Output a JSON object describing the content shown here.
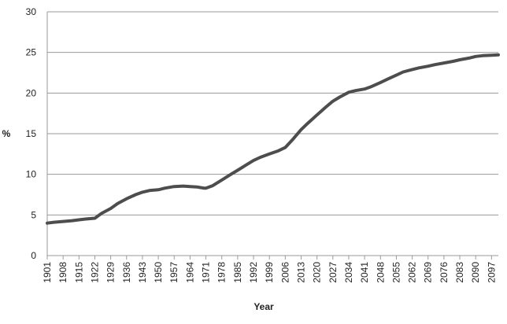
{
  "chart_data": {
    "type": "line",
    "xlabel": "Year",
    "ylabel": "%",
    "ylim": [
      0,
      30
    ],
    "yticks": [
      "0",
      "5",
      "10",
      "15",
      "20",
      "25",
      "30"
    ],
    "xlim": [
      1901,
      2100
    ],
    "xticks": [
      "1901",
      "1908",
      "1915",
      "1922",
      "1929",
      "1936",
      "1943",
      "1950",
      "1957",
      "1964",
      "1971",
      "1978",
      "1985",
      "1992",
      "1999",
      "2006",
      "2013",
      "2020",
      "2027",
      "2034",
      "2041",
      "2048",
      "2055",
      "2062",
      "2069",
      "2076",
      "2083",
      "2090",
      "2097"
    ],
    "grid": "horizontal",
    "legend": "none",
    "line_color": "#4d4d4d",
    "series": [
      {
        "x": [
          1901,
          1904,
          1908,
          1912,
          1915,
          1918,
          1922,
          1925,
          1929,
          1932,
          1936,
          1940,
          1943,
          1946,
          1950,
          1953,
          1957,
          1961,
          1964,
          1967,
          1970,
          1971,
          1974,
          1978,
          1982,
          1985,
          1989,
          1992,
          1995,
          1999,
          2003,
          2006,
          2009,
          2013,
          2016,
          2020,
          2024,
          2027,
          2030,
          2034,
          2037,
          2041,
          2044,
          2048,
          2051,
          2055,
          2058,
          2062,
          2065,
          2069,
          2072,
          2076,
          2080,
          2083,
          2087,
          2090,
          2093,
          2097,
          2100
        ],
        "y": [
          4.0,
          4.1,
          4.2,
          4.3,
          4.4,
          4.5,
          4.6,
          5.2,
          5.8,
          6.4,
          7.0,
          7.5,
          7.8,
          8.0,
          8.1,
          8.3,
          8.5,
          8.55,
          8.5,
          8.45,
          8.3,
          8.3,
          8.6,
          9.3,
          10.0,
          10.5,
          11.2,
          11.7,
          12.1,
          12.5,
          12.9,
          13.3,
          14.2,
          15.5,
          16.3,
          17.3,
          18.3,
          19.0,
          19.5,
          20.1,
          20.3,
          20.5,
          20.8,
          21.3,
          21.7,
          22.2,
          22.6,
          22.9,
          23.1,
          23.3,
          23.5,
          23.7,
          23.9,
          24.1,
          24.3,
          24.5,
          24.6,
          24.65,
          24.7
        ]
      }
    ]
  }
}
